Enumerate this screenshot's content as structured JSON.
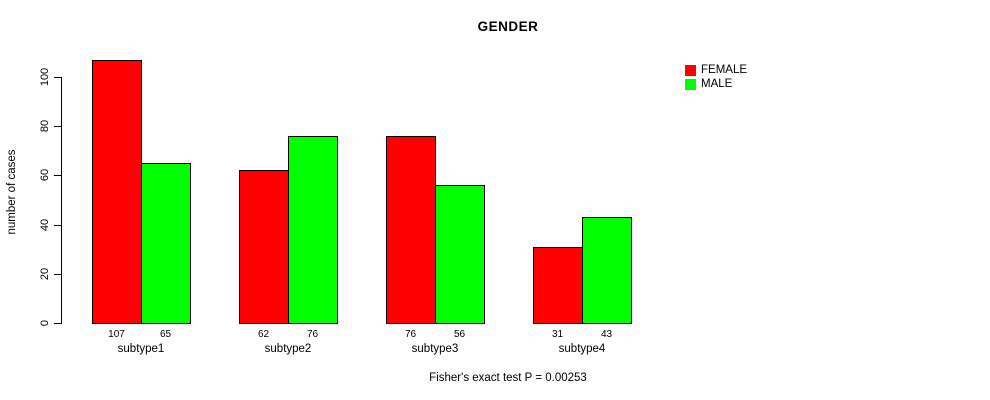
{
  "chart_data": {
    "type": "bar",
    "title": "GENDER",
    "xlabel": "",
    "ylabel": "number of cases",
    "categories": [
      "subtype1",
      "subtype2",
      "subtype3",
      "subtype4"
    ],
    "series": [
      {
        "name": "FEMALE",
        "color": "#ff0000",
        "values": [
          107,
          62,
          76,
          31
        ]
      },
      {
        "name": "MALE",
        "color": "#00ff00",
        "values": [
          65,
          76,
          56,
          43
        ]
      }
    ],
    "yticks": [
      0,
      20,
      40,
      60,
      80,
      100
    ],
    "ylim": [
      0,
      110
    ],
    "grid": false,
    "bar_value_labels_shown": true,
    "legend_position": "top-right-outside",
    "caption": "Fisher's exact test P = 0.00253"
  }
}
